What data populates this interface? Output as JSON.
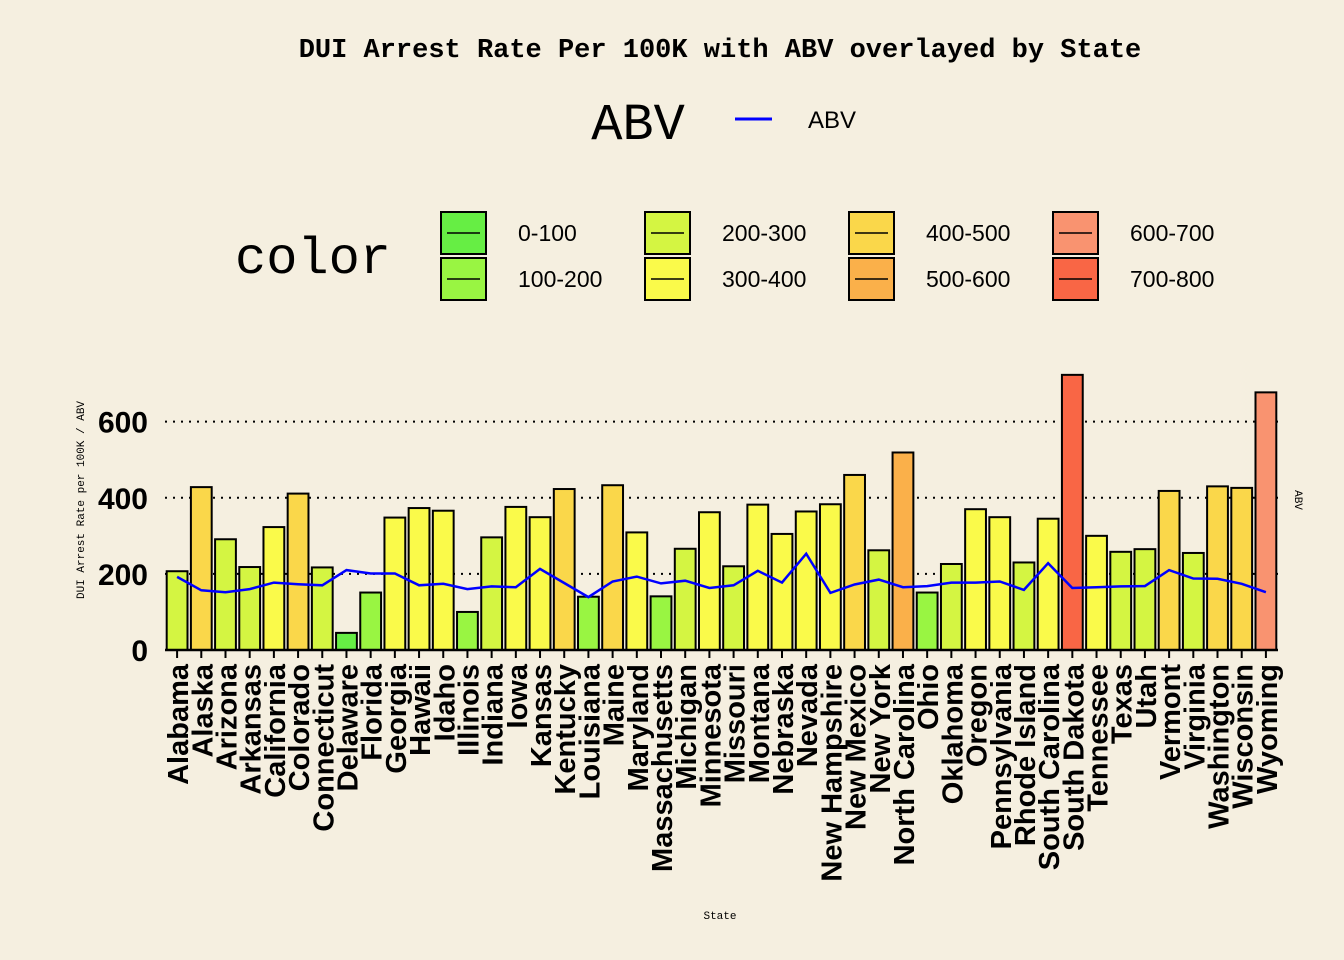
{
  "chart_data": {
    "type": "bar",
    "title": "DUI Arrest Rate Per 100K with ABV overlayed by State",
    "xlabel": "State",
    "ylabel": "DUI Arrest Rate per 100K / ABV",
    "y2label": "ABV",
    "ylim": [
      0,
      720
    ],
    "yticks": [
      0,
      200,
      400,
      600
    ],
    "grid": "horizontal dotted",
    "legend_placement": "top",
    "legend_line": {
      "title": "ABV",
      "label": "ABV",
      "color": "#0000ff"
    },
    "legend_fill": {
      "title": "color",
      "entries": [
        {
          "label": "0-100",
          "color": "#66ee44"
        },
        {
          "label": "100-200",
          "color": "#99f542"
        },
        {
          "label": "200-300",
          "color": "#d4f542"
        },
        {
          "label": "300-400",
          "color": "#fafa4a"
        },
        {
          "label": "400-500",
          "color": "#fad74a"
        },
        {
          "label": "500-600",
          "color": "#fab04a"
        },
        {
          "label": "600-700",
          "color": "#f99370"
        },
        {
          "label": "700-800",
          "color": "#f96645"
        }
      ]
    },
    "categories": [
      "Alabama",
      "Alaska",
      "Arizona",
      "Arkansas",
      "California",
      "Colorado",
      "Connecticut",
      "Delaware",
      "Florida",
      "Georgia",
      "Hawaii",
      "Idaho",
      "Illinois",
      "Indiana",
      "Iowa",
      "Kansas",
      "Kentucky",
      "Louisiana",
      "Maine",
      "Maryland",
      "Massachusetts",
      "Michigan",
      "Minnesota",
      "Missouri",
      "Montana",
      "Nebraska",
      "Nevada",
      "New Hampshire",
      "New Mexico",
      "New York",
      "North Carolina",
      "Ohio",
      "Oklahoma",
      "Oregon",
      "Pennsylvania",
      "Rhode Island",
      "South Carolina",
      "South Dakota",
      "Tennessee",
      "Texas",
      "Utah",
      "Vermont",
      "Virginia",
      "Washington",
      "Wisconsin",
      "Wyoming"
    ],
    "series": [
      {
        "type": "bar",
        "values": [
          207,
          428,
          291,
          218,
          323,
          411,
          217,
          45,
          151,
          348,
          373,
          366,
          100,
          296,
          376,
          349,
          423,
          140,
          433,
          309,
          141,
          266,
          362,
          220,
          382,
          305,
          364,
          383,
          460,
          262,
          519,
          151,
          226,
          370,
          349,
          230,
          345,
          723,
          300,
          258,
          265,
          418,
          255,
          430,
          426,
          677
        ]
      },
      {
        "type": "line",
        "name": "ABV",
        "color": "#0000ff",
        "values": [
          192,
          157,
          152,
          160,
          177,
          173,
          170,
          210,
          201,
          201,
          170,
          174,
          160,
          167,
          165,
          213,
          176,
          139,
          180,
          193,
          175,
          182,
          163,
          170,
          208,
          177,
          253,
          150,
          172,
          185,
          165,
          168,
          177,
          177,
          180,
          158,
          228,
          163,
          165,
          167,
          168,
          210,
          188,
          187,
          174,
          152
        ]
      }
    ]
  }
}
